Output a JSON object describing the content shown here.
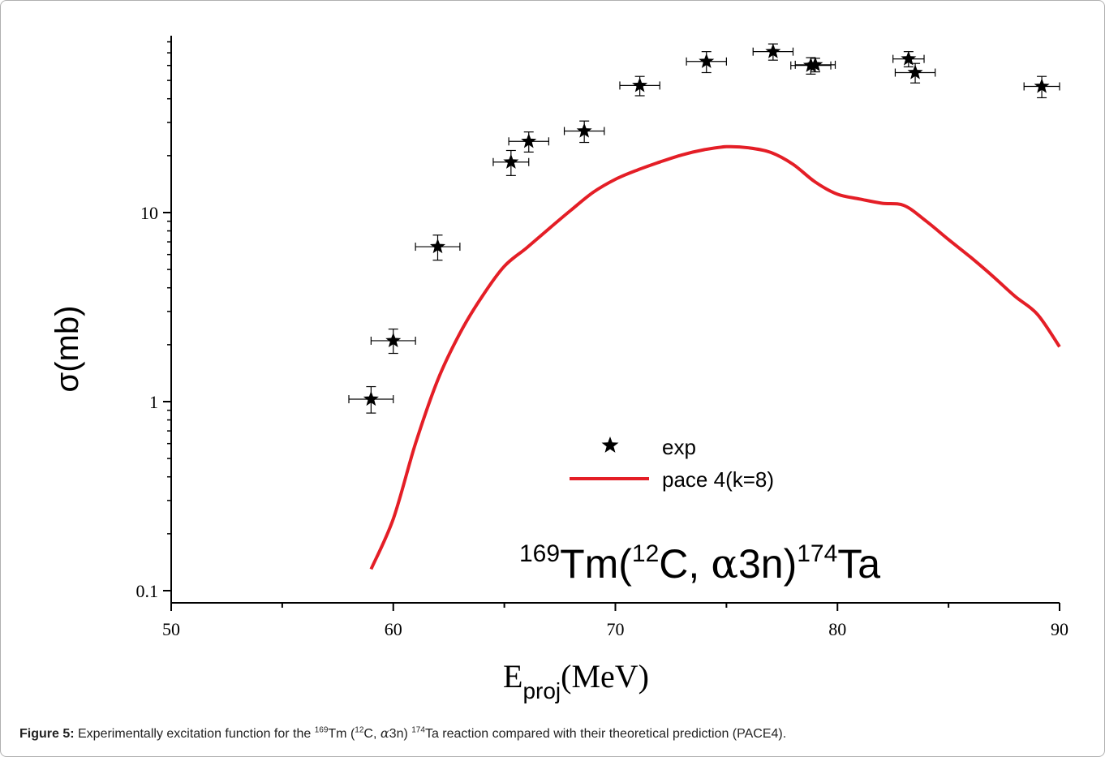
{
  "chart_data": {
    "type": "scatter",
    "xlabel": {
      "main": "E",
      "sub": "proj",
      "unit": "(MeV)"
    },
    "ylabel": "σ(mb)",
    "xlim": [
      50,
      90
    ],
    "ylim": [
      0.1,
      80
    ],
    "yscale": "log",
    "x_ticks": [
      50,
      60,
      70,
      80,
      90
    ],
    "y_ticks": [
      {
        "value": 0.1,
        "label": "0.1"
      },
      {
        "value": 1,
        "label": "1"
      },
      {
        "value": 10,
        "label": "10"
      }
    ],
    "grid": false,
    "legend_placement": "center",
    "legend": [
      {
        "label": "exp",
        "marker": "star",
        "color": "#000000"
      },
      {
        "label": "pace 4(k=8)",
        "marker": "line",
        "color": "#e41e26"
      }
    ],
    "series": [
      {
        "name": "exp",
        "kind": "scatter",
        "color": "#000000",
        "points": [
          {
            "x": 59.0,
            "y": 1.03,
            "xerr": 1.0,
            "ylo": 0.87,
            "yhi": 1.2
          },
          {
            "x": 60.0,
            "y": 2.1,
            "xerr": 1.0,
            "ylo": 1.8,
            "yhi": 2.42
          },
          {
            "x": 62.0,
            "y": 6.6,
            "xerr": 1.0,
            "ylo": 5.6,
            "yhi": 7.6
          },
          {
            "x": 65.3,
            "y": 18.5,
            "xerr": 0.8,
            "ylo": 15.7,
            "yhi": 21.3
          },
          {
            "x": 66.1,
            "y": 23.8,
            "xerr": 0.9,
            "ylo": 20.9,
            "yhi": 26.7
          },
          {
            "x": 68.6,
            "y": 27.0,
            "xerr": 0.9,
            "ylo": 23.5,
            "yhi": 30.5
          },
          {
            "x": 71.1,
            "y": 47.0,
            "xerr": 0.9,
            "ylo": 41.5,
            "yhi": 52.5
          },
          {
            "x": 74.1,
            "y": 63.0,
            "xerr": 0.9,
            "ylo": 55.0,
            "yhi": 71.0
          },
          {
            "x": 77.1,
            "y": 71.0,
            "xerr": 0.9,
            "ylo": 64.0,
            "yhi": 78.0
          },
          {
            "x": 78.8,
            "y": 60.0,
            "xerr": 0.9,
            "ylo": 54.0,
            "yhi": 66.0
          },
          {
            "x": 79.0,
            "y": 60.5,
            "xerr": 0.9,
            "ylo": 55.5,
            "yhi": 65.5
          },
          {
            "x": 83.2,
            "y": 65.0,
            "xerr": 0.7,
            "ylo": 59.0,
            "yhi": 71.0
          },
          {
            "x": 83.5,
            "y": 55.0,
            "xerr": 0.9,
            "ylo": 48.5,
            "yhi": 61.5
          },
          {
            "x": 89.2,
            "y": 46.5,
            "xerr": 0.8,
            "ylo": 40.5,
            "yhi": 52.5
          }
        ]
      },
      {
        "name": "pace 4(k=8)",
        "kind": "line",
        "color": "#e41e26",
        "x": [
          59,
          60,
          61,
          62,
          63,
          64,
          65,
          66,
          67,
          68,
          69,
          70,
          71,
          72,
          73,
          74,
          75,
          76,
          77,
          78,
          79,
          80,
          81,
          82,
          83,
          84,
          85,
          86,
          87,
          88,
          89,
          90
        ],
        "y": [
          0.13,
          0.24,
          0.6,
          1.3,
          2.3,
          3.6,
          5.2,
          6.5,
          8.2,
          10.3,
          12.8,
          15.0,
          16.8,
          18.5,
          20.2,
          21.5,
          22.3,
          22.0,
          20.8,
          18.0,
          14.5,
          12.5,
          11.8,
          11.2,
          10.9,
          9.0,
          7.2,
          5.8,
          4.6,
          3.6,
          2.9,
          1.95
        ]
      }
    ],
    "annotation": {
      "base": "Tm(",
      "pre_mass": "169",
      "proj_mass": "12",
      "proj": "C, ",
      "greek": "α",
      "rest": "3n)",
      "prod_mass": "174",
      "prod": "Ta"
    }
  },
  "caption": {
    "label": "Figure 5:",
    "t1": " Experimentally excitation function for the ",
    "m1": "169",
    "t2": "Tm (",
    "m2": "12",
    "t3": "C, ",
    "greek": "α",
    "t4": "3n) ",
    "m3": "174",
    "t5": "Ta reaction compared with their theoretical prediction (PACE4)."
  }
}
